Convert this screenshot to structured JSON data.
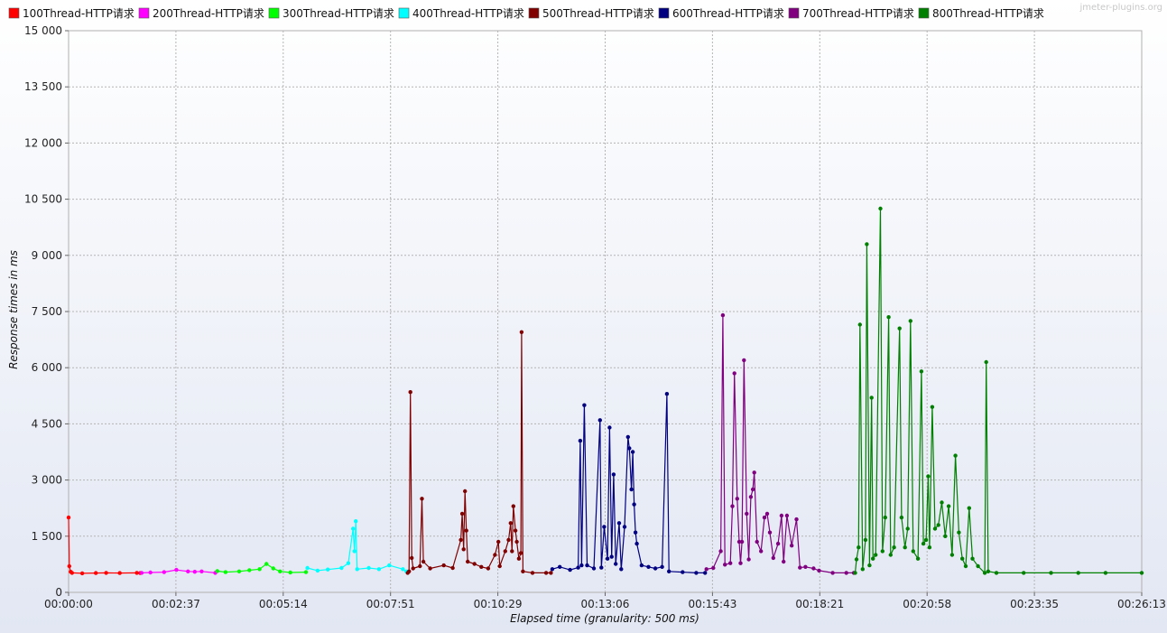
{
  "chart_data": {
    "type": "line",
    "title": "",
    "watermark": "jmeter-plugins.org",
    "xlabel": "Elapsed time (granularity: 500 ms)",
    "ylabel": "Response times in ms",
    "xlim_seconds": [
      0,
      1573
    ],
    "ylim": [
      0,
      15000
    ],
    "x_ticks": [
      "00:00:00",
      "00:02:37",
      "00:05:14",
      "00:07:51",
      "00:10:29",
      "00:13:06",
      "00:15:43",
      "00:18:21",
      "00:20:58",
      "00:23:35",
      "00:26:13"
    ],
    "y_ticks": [
      "0",
      "1 500",
      "3 000",
      "4 500",
      "6 000",
      "7 500",
      "9 000",
      "10 500",
      "12 000",
      "13 500",
      "15 000"
    ],
    "grid": true,
    "legend_position": "top",
    "series": [
      {
        "name": "100Thread-HTTP请求",
        "color": "#ff0000",
        "points": [
          [
            0,
            2000
          ],
          [
            1,
            700
          ],
          [
            3,
            550
          ],
          [
            5,
            520
          ],
          [
            20,
            510
          ],
          [
            40,
            515
          ],
          [
            55,
            520
          ],
          [
            75,
            515
          ],
          [
            100,
            520
          ],
          [
            105,
            515
          ]
        ]
      },
      {
        "name": "200Thread-HTTP请求",
        "color": "#ff00ff",
        "points": [
          [
            107,
            520
          ],
          [
            120,
            530
          ],
          [
            140,
            540
          ],
          [
            158,
            600
          ],
          [
            175,
            560
          ],
          [
            185,
            550
          ],
          [
            195,
            560
          ],
          [
            215,
            520
          ]
        ]
      },
      {
        "name": "300Thread-HTTP请求",
        "color": "#00ff00",
        "points": [
          [
            218,
            570
          ],
          [
            230,
            540
          ],
          [
            250,
            560
          ],
          [
            265,
            590
          ],
          [
            280,
            620
          ],
          [
            290,
            760
          ],
          [
            300,
            640
          ],
          [
            310,
            560
          ],
          [
            325,
            530
          ],
          [
            348,
            540
          ]
        ]
      },
      {
        "name": "400Thread-HTTP请求",
        "color": "#00ffff",
        "points": [
          [
            350,
            650
          ],
          [
            365,
            580
          ],
          [
            380,
            610
          ],
          [
            400,
            650
          ],
          [
            410,
            780
          ],
          [
            417,
            1700
          ],
          [
            419,
            1100
          ],
          [
            421,
            1900
          ],
          [
            423,
            620
          ],
          [
            440,
            650
          ],
          [
            455,
            620
          ],
          [
            470,
            720
          ],
          [
            490,
            620
          ],
          [
            495,
            560
          ]
        ]
      },
      {
        "name": "500Thread-HTTP请求",
        "color": "#800000",
        "points": [
          [
            497,
            520
          ],
          [
            499,
            560
          ],
          [
            501,
            5350
          ],
          [
            503,
            920
          ],
          [
            505,
            640
          ],
          [
            515,
            700
          ],
          [
            518,
            2500
          ],
          [
            520,
            820
          ],
          [
            530,
            640
          ],
          [
            550,
            720
          ],
          [
            563,
            650
          ],
          [
            575,
            1400
          ],
          [
            577,
            2100
          ],
          [
            579,
            1150
          ],
          [
            581,
            2700
          ],
          [
            583,
            1650
          ],
          [
            585,
            820
          ],
          [
            595,
            760
          ],
          [
            605,
            680
          ],
          [
            615,
            640
          ],
          [
            625,
            1000
          ],
          [
            630,
            1350
          ],
          [
            632,
            700
          ],
          [
            640,
            1100
          ],
          [
            645,
            1400
          ],
          [
            648,
            1850
          ],
          [
            650,
            1100
          ],
          [
            652,
            2300
          ],
          [
            655,
            1650
          ],
          [
            657,
            1350
          ],
          [
            660,
            900
          ],
          [
            663,
            1050
          ],
          [
            664,
            6950
          ],
          [
            666,
            560
          ],
          [
            680,
            520
          ],
          [
            700,
            520
          ],
          [
            707,
            520
          ]
        ]
      },
      {
        "name": "600Thread-HTTP请求",
        "color": "#000080",
        "points": [
          [
            709,
            620
          ],
          [
            720,
            680
          ],
          [
            735,
            600
          ],
          [
            747,
            660
          ],
          [
            750,
            4050
          ],
          [
            752,
            720
          ],
          [
            756,
            5000
          ],
          [
            760,
            720
          ],
          [
            770,
            640
          ],
          [
            779,
            4600
          ],
          [
            781,
            660
          ],
          [
            785,
            1750
          ],
          [
            790,
            900
          ],
          [
            793,
            4400
          ],
          [
            796,
            950
          ],
          [
            799,
            3150
          ],
          [
            802,
            760
          ],
          [
            807,
            1850
          ],
          [
            810,
            620
          ],
          [
            815,
            1750
          ],
          [
            820,
            4150
          ],
          [
            822,
            3850
          ],
          [
            825,
            2750
          ],
          [
            827,
            3750
          ],
          [
            829,
            2350
          ],
          [
            831,
            1600
          ],
          [
            833,
            1300
          ],
          [
            840,
            720
          ],
          [
            850,
            680
          ],
          [
            860,
            640
          ],
          [
            870,
            680
          ],
          [
            877,
            5300
          ],
          [
            880,
            560
          ],
          [
            900,
            540
          ],
          [
            920,
            520
          ],
          [
            933,
            520
          ]
        ]
      },
      {
        "name": "700Thread-HTTP请求",
        "color": "#800080",
        "points": [
          [
            935,
            620
          ],
          [
            945,
            650
          ],
          [
            956,
            1100
          ],
          [
            959,
            7400
          ],
          [
            962,
            740
          ],
          [
            970,
            780
          ],
          [
            973,
            2300
          ],
          [
            976,
            5850
          ],
          [
            980,
            2500
          ],
          [
            983,
            1350
          ],
          [
            985,
            780
          ],
          [
            987,
            1350
          ],
          [
            990,
            6200
          ],
          [
            994,
            2100
          ],
          [
            997,
            880
          ],
          [
            1000,
            2550
          ],
          [
            1003,
            2750
          ],
          [
            1005,
            3200
          ],
          [
            1009,
            1350
          ],
          [
            1015,
            1100
          ],
          [
            1020,
            2000
          ],
          [
            1024,
            2100
          ],
          [
            1028,
            1600
          ],
          [
            1033,
            920
          ],
          [
            1040,
            1300
          ],
          [
            1045,
            2050
          ],
          [
            1048,
            820
          ],
          [
            1053,
            2050
          ],
          [
            1060,
            1250
          ],
          [
            1067,
            1950
          ],
          [
            1072,
            660
          ],
          [
            1080,
            680
          ],
          [
            1092,
            640
          ],
          [
            1100,
            580
          ],
          [
            1120,
            520
          ],
          [
            1140,
            520
          ],
          [
            1151,
            520
          ]
        ]
      },
      {
        "name": "800Thread-HTTP请求",
        "color": "#008000",
        "points": [
          [
            1153,
            520
          ],
          [
            1155,
            880
          ],
          [
            1158,
            1200
          ],
          [
            1160,
            7150
          ],
          [
            1164,
            620
          ],
          [
            1168,
            1400
          ],
          [
            1170,
            9300
          ],
          [
            1174,
            720
          ],
          [
            1177,
            5200
          ],
          [
            1179,
            900
          ],
          [
            1183,
            1000
          ],
          [
            1190,
            10250
          ],
          [
            1193,
            1100
          ],
          [
            1197,
            2000
          ],
          [
            1202,
            7350
          ],
          [
            1205,
            1000
          ],
          [
            1210,
            1200
          ],
          [
            1218,
            7050
          ],
          [
            1221,
            2000
          ],
          [
            1226,
            1200
          ],
          [
            1230,
            1700
          ],
          [
            1234,
            7250
          ],
          [
            1238,
            1100
          ],
          [
            1245,
            900
          ],
          [
            1250,
            5900
          ],
          [
            1253,
            1300
          ],
          [
            1257,
            1400
          ],
          [
            1260,
            3100
          ],
          [
            1262,
            1200
          ],
          [
            1266,
            4950
          ],
          [
            1270,
            1700
          ],
          [
            1275,
            1800
          ],
          [
            1280,
            2400
          ],
          [
            1285,
            1500
          ],
          [
            1290,
            2300
          ],
          [
            1295,
            1000
          ],
          [
            1300,
            3650
          ],
          [
            1305,
            1600
          ],
          [
            1310,
            900
          ],
          [
            1315,
            700
          ],
          [
            1320,
            2250
          ],
          [
            1325,
            900
          ],
          [
            1333,
            700
          ],
          [
            1343,
            520
          ],
          [
            1345,
            6150
          ],
          [
            1348,
            560
          ],
          [
            1360,
            520
          ],
          [
            1400,
            520
          ],
          [
            1440,
            520
          ],
          [
            1480,
            520
          ],
          [
            1520,
            520
          ],
          [
            1573,
            520
          ]
        ]
      }
    ]
  }
}
